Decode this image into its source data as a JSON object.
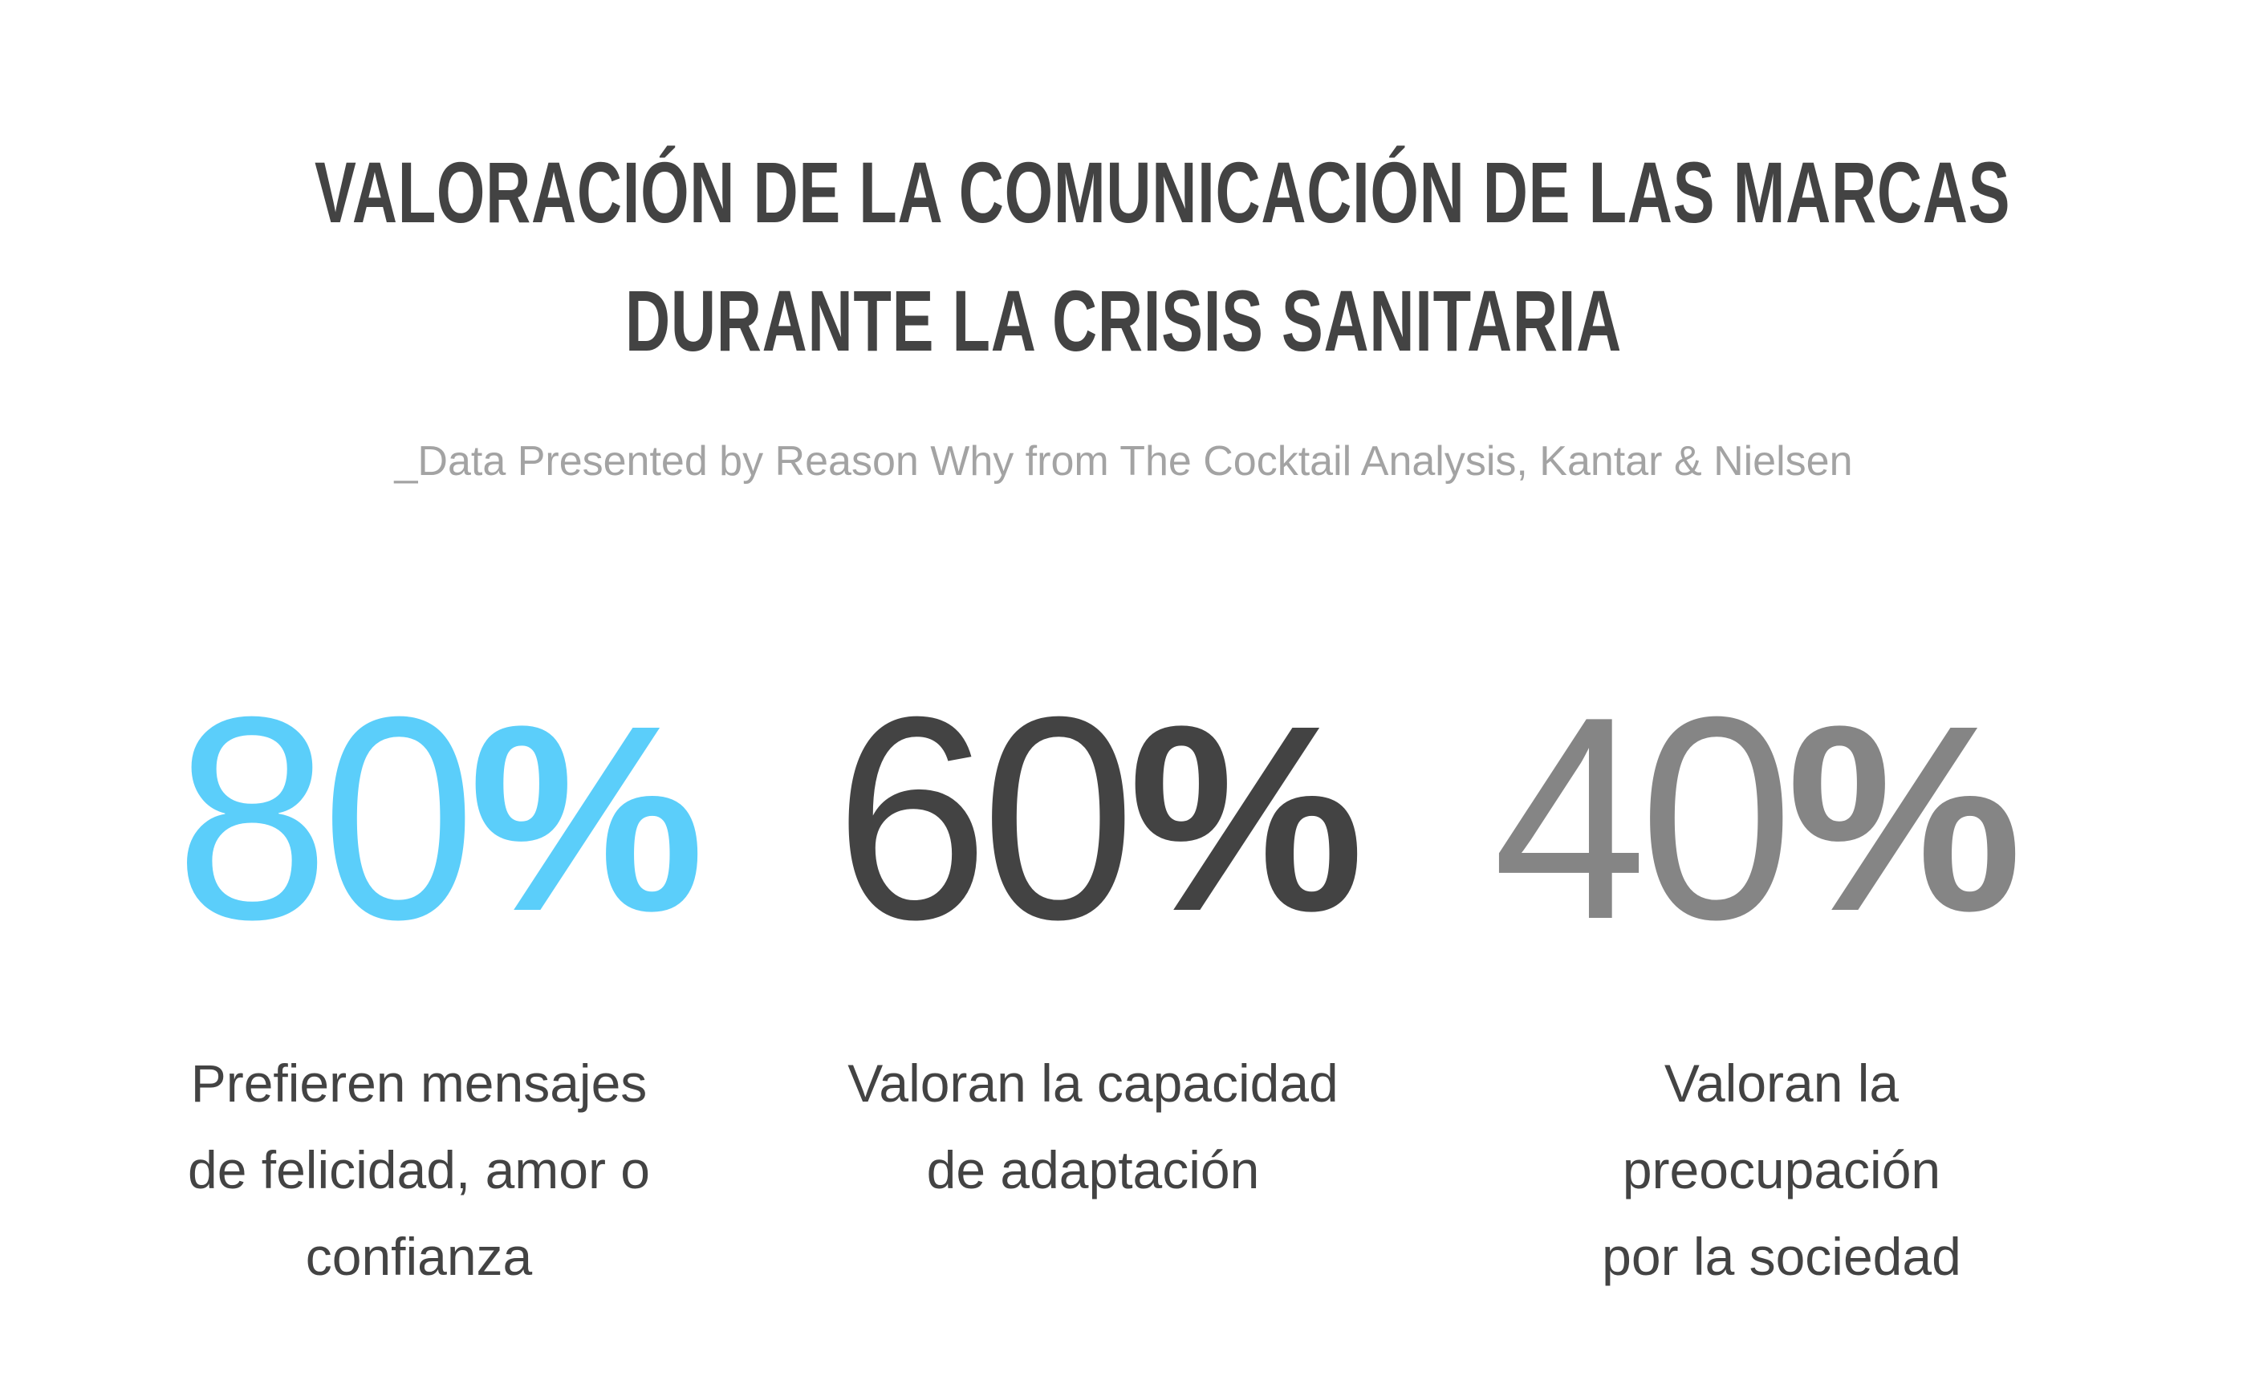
{
  "title": {
    "line1": "VALORACIÓN DE LA COMUNICACIÓN DE LAS MARCAS",
    "line2": "DURANTE LA CRISIS SANITARIA"
  },
  "subtitle": "_Data Presented by Reason Why from The Cocktail Analysis, Kantar & Nielsen",
  "stats": [
    {
      "number": "80",
      "percent_sign": "%",
      "value_percent": 80,
      "color": "#5bcefa",
      "description_lines": [
        "Prefieren mensajes",
        "de felicidad, amor o",
        "confianza"
      ]
    },
    {
      "number": "60",
      "percent_sign": "%",
      "value_percent": 60,
      "color": "#434343",
      "description_lines": [
        "Valoran la capacidad",
        "de adaptación"
      ]
    },
    {
      "number": "40",
      "percent_sign": "%",
      "value_percent": 40,
      "color": "#858585",
      "description_lines": [
        "Valoran la preocupación",
        "por la sociedad"
      ]
    }
  ],
  "colors": {
    "background": "#ffffff",
    "title": "#434343",
    "subtitle": "#a3a3a3",
    "description": "#434343"
  }
}
